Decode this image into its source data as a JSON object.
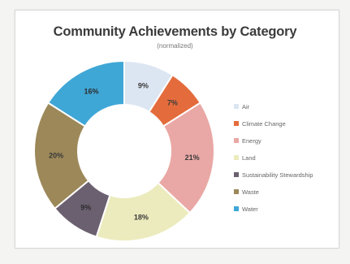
{
  "chart_data": {
    "type": "pie",
    "title": "Community Achievements by Category",
    "subtitle": "(normalized)",
    "legend_position": "right",
    "categories": [
      "Air",
      "Climate Change",
      "Energy",
      "Land",
      "Sustainability Stewardship",
      "Waste",
      "Water"
    ],
    "values": [
      9,
      7,
      21,
      18,
      9,
      20,
      16
    ],
    "data_labels": [
      "9%",
      "7%",
      "21%",
      "18%",
      "9%",
      "20%",
      "16%"
    ],
    "colors": [
      "#dce6f2",
      "#e46c3c",
      "#e9a8a5",
      "#ecebbd",
      "#6b6070",
      "#9c8859",
      "#3fa7d6"
    ]
  }
}
